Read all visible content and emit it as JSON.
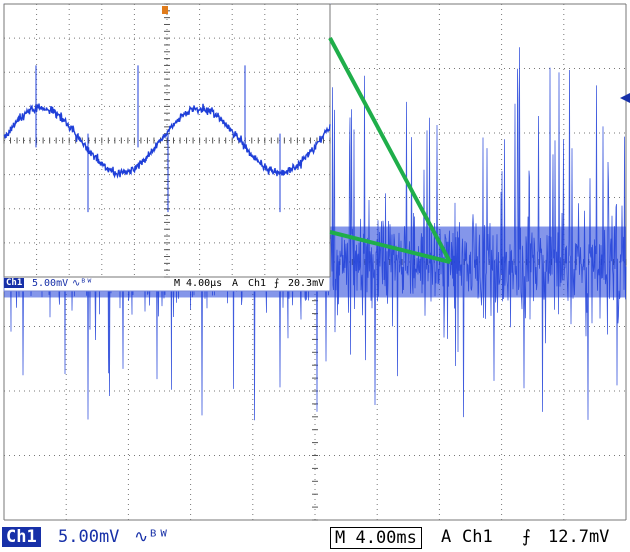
{
  "main_status": {
    "channel": "Ch1",
    "scale": "5.00mV",
    "coupling_symbol": "∿ᴮᵂ",
    "timebase": "M 4.00ms",
    "trigger_label": "A",
    "trigger_channel": "Ch1",
    "trigger_slope": "⨍",
    "trigger_level": "12.7mV"
  },
  "inset_status": {
    "channel": "Ch1",
    "scale": "5.00mV",
    "coupling_symbol": "∿ᴮᵂ",
    "timebase": "M 4.00µs",
    "trigger_label": "A",
    "trigger_channel": "Ch1",
    "trigger_slope": "⨍",
    "trigger_level": "20.3mV"
  },
  "colors": {
    "trace": "#1f3fd8",
    "grid": "#555555",
    "zoom_lines": "#1fae4a",
    "badge": "#1730a8"
  },
  "chart_data": [
    {
      "type": "line",
      "title": "",
      "description_of_signal": "dense noise-like trace centered at 0 divisions, amplitude roughly -3 to +4 divisions",
      "x_unit": "ms",
      "x_per_div": 4.0,
      "y_unit": "mV",
      "y_per_div": 5.0,
      "xlim": [
        -20,
        20
      ],
      "ylim": [
        -20,
        20
      ],
      "grid": true,
      "divisions": {
        "x": 10,
        "y": 8
      }
    },
    {
      "type": "line",
      "title": "",
      "description_of_signal": "zoomed view: sinusoid with period ~20 µs and amplitude ~1 division plus periodic spikes",
      "x_unit": "µs",
      "x_per_div": 4.0,
      "y_unit": "mV",
      "y_per_div": 5.0,
      "xlim": [
        -20,
        20
      ],
      "ylim": [
        -20,
        20
      ],
      "grid": true,
      "divisions": {
        "x": 10,
        "y": 8
      }
    }
  ]
}
